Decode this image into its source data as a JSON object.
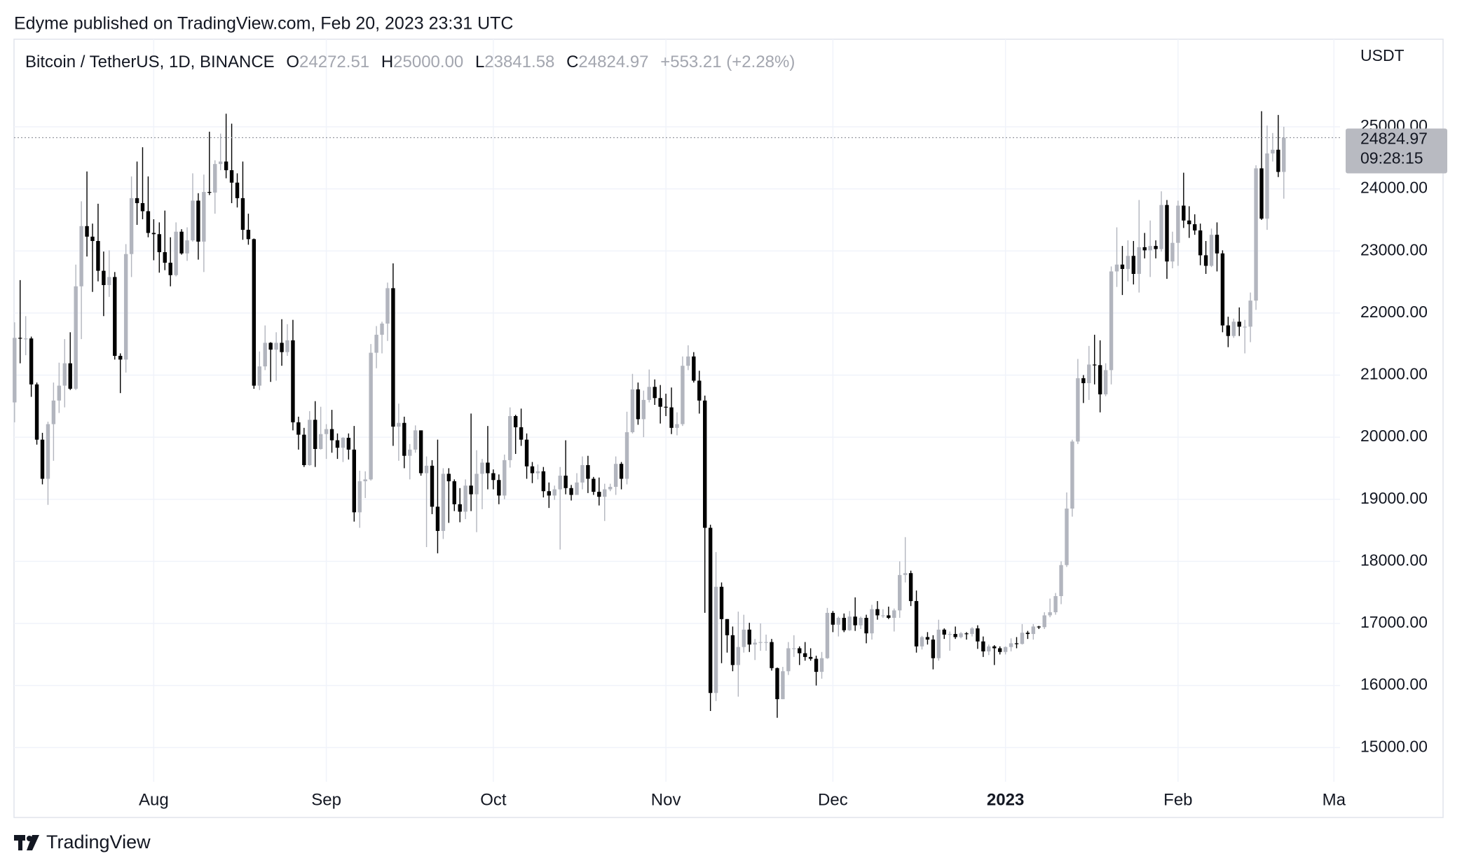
{
  "header": {
    "publisher": "Edyme published on TradingView.com, Feb 20, 2023 23:31 UTC"
  },
  "footer": {
    "brand": "TradingView"
  },
  "chart_data": {
    "type": "candlestick",
    "legend": {
      "symbol": "Bitcoin / TetherUS, 1D, BINANCE",
      "fields": [
        {
          "key": "O",
          "value": "24272.51"
        },
        {
          "key": "H",
          "value": "25000.00"
        },
        {
          "key": "L",
          "value": "23841.58"
        },
        {
          "key": "C",
          "value": "24824.97"
        }
      ],
      "change": "+553.21 (+2.28%)"
    },
    "y_unit": "USDT",
    "countdown": "09:28:15",
    "up_color": "#b2b5be",
    "down_color": "#000000",
    "grid": true,
    "open": [
      20560,
      21600,
      21590,
      21590,
      20850,
      19960,
      19330,
      20210,
      20590,
      20830,
      21190,
      20780,
      22430,
      23400,
      23230,
      23160,
      22680,
      22450,
      22580,
      21310,
      21250,
      22950,
      23850,
      23770,
      23640,
      23290,
      23270,
      22980,
      22810,
      22610,
      23310,
      22960,
      23170,
      23810,
      23150,
      23950,
      23940,
      24400,
      24440,
      24300,
      24100,
      23850,
      23340,
      23190,
      20830,
      21140,
      21520,
      21410,
      21520,
      21370,
      21560,
      20240,
      20040,
      19550,
      20280,
      19810,
      20050,
      20130,
      19950,
      19830,
      19990,
      19800,
      18790,
      19290,
      19320,
      21360,
      21650,
      21830,
      22400,
      20170,
      20230,
      19700,
      19800,
      20110,
      19420,
      19540,
      18880,
      18490,
      19410,
      19290,
      18920,
      18800,
      19220,
      19080,
      19410,
      19590,
      19420,
      19310,
      19060,
      19630,
      20340,
      20160,
      19960,
      19530,
      19420,
      19450,
      19130,
      19060,
      19160,
      19380,
      19180,
      19070,
      19270,
      19550,
      19330,
      19120,
      19040,
      19160,
      19200,
      19570,
      19330,
      20080,
      20770,
      20290,
      20600,
      20810,
      20630,
      20490,
      20480,
      20150,
      20210,
      21150,
      21300,
      20910,
      20590,
      18540,
      15880,
      17590,
      17070,
      16810,
      16330,
      16620,
      16900,
      16660,
      16690,
      16700,
      16700,
      16280,
      15780,
      16230,
      16600,
      16600,
      16520,
      16460,
      16430,
      16220,
      16440,
      17170,
      16980,
      17090,
      16890,
      17110,
      16970,
      17090,
      16840,
      17230,
      17130,
      17130,
      17090,
      17210,
      17780,
      17810,
      17360,
      16630,
      16780,
      16740,
      16440,
      16900,
      16820,
      16830,
      16780,
      16840,
      16830,
      16920,
      16710,
      16550,
      16630,
      16600,
      16540,
      16620,
      16680,
      16670,
      16850,
      16830,
      16950,
      16940,
      17130,
      17180,
      17440,
      17940,
      18850,
      19930,
      20950,
      20870,
      21170,
      21160,
      20690,
      21080,
      22670,
      22780,
      22710,
      22920,
      22630,
      23060,
      23010,
      23080,
      23030,
      23740,
      22830,
      23130,
      23730,
      23490,
      23430,
      23330,
      22930,
      22760,
      23260,
      22960,
      21800,
      21630,
      21860,
      21780,
      21780,
      22200,
      24330,
      23520,
      24570,
      24630,
      24272.51
    ],
    "high": [
      21850,
      22530,
      21950,
      21620,
      20880,
      20070,
      20250,
      20880,
      21200,
      21580,
      21690,
      22780,
      23800,
      24280,
      23440,
      23760,
      22990,
      23010,
      22660,
      21350,
      23110,
      24200,
      24440,
      24670,
      24200,
      23510,
      23460,
      23650,
      23220,
      23460,
      23350,
      23380,
      24250,
      23930,
      24230,
      24920,
      24460,
      24890,
      25210,
      25050,
      24250,
      24440,
      23600,
      23200,
      21380,
      21800,
      21530,
      21690,
      21900,
      21820,
      21890,
      20330,
      20150,
      20420,
      20580,
      20490,
      20210,
      20440,
      20060,
      20000,
      20060,
      20180,
      19460,
      19450,
      21500,
      21790,
      21860,
      22490,
      22800,
      20540,
      20330,
      19890,
      20190,
      20100,
      19690,
      19630,
      19960,
      19500,
      19500,
      19320,
      19180,
      19320,
      20380,
      19790,
      19650,
      20180,
      19480,
      19400,
      19720,
      20480,
      20360,
      20460,
      20060,
      19600,
      19560,
      19520,
      19270,
      19220,
      19520,
      19950,
      19230,
      19420,
      19690,
      19700,
      19360,
      19350,
      19250,
      19250,
      19690,
      19600,
      20410,
      21020,
      20880,
      20750,
      21090,
      20930,
      20840,
      20700,
      20800,
      20400,
      21300,
      21480,
      21370,
      21070,
      20670,
      18590,
      18150,
      17660,
      17070,
      16950,
      17190,
      17140,
      17010,
      16750,
      17000,
      16820,
      16750,
      16290,
      16300,
      16700,
      16810,
      16630,
      16700,
      16600,
      16480,
      16540,
      17250,
      17200,
      17110,
      17160,
      17200,
      17420,
      17110,
      17140,
      17300,
      17360,
      17230,
      17270,
      17240,
      18000,
      18390,
      17850,
      17530,
      16800,
      16860,
      16810,
      17060,
      16920,
      16870,
      16950,
      16860,
      16860,
      16940,
      16970,
      16790,
      16660,
      16650,
      16630,
      16630,
      16760,
      16780,
      16990,
      16880,
      16990,
      16960,
      17180,
      17400,
      17490,
      18000,
      19110,
      19960,
      21260,
      21000,
      21470,
      21650,
      21560,
      21190,
      22750,
      23380,
      23080,
      23170,
      23160,
      23820,
      23290,
      23490,
      23170,
      23960,
      23820,
      23310,
      23810,
      24260,
      23720,
      23590,
      23440,
      23160,
      23360,
      23460,
      23010,
      21940,
      21910,
      22090,
      21890,
      22330,
      24380,
      25250,
      25020,
      24900,
      25190,
      25000
    ],
    "low": [
      20240,
      21190,
      21320,
      20650,
      19880,
      19240,
      18910,
      19620,
      20390,
      20480,
      20760,
      20760,
      21580,
      22910,
      22340,
      22510,
      21950,
      22260,
      21250,
      20710,
      21040,
      22580,
      23420,
      23510,
      23220,
      22850,
      22650,
      22690,
      22430,
      22590,
      22940,
      22840,
      23150,
      22860,
      22660,
      23900,
      23600,
      24300,
      24170,
      23770,
      23700,
      23180,
      23100,
      20780,
      20760,
      21080,
      20890,
      20910,
      21150,
      21310,
      20110,
      19800,
      19520,
      19540,
      19520,
      19800,
      19650,
      19750,
      19650,
      19600,
      19640,
      18640,
      18540,
      19020,
      19300,
      21110,
      21350,
      21550,
      19860,
      19620,
      19500,
      19320,
      19750,
      19380,
      18230,
      18760,
      18130,
      18360,
      18620,
      18810,
      18630,
      18680,
      18810,
      18470,
      18840,
      19160,
      19160,
      18920,
      19000,
      19510,
      19730,
      19860,
      19330,
      19260,
      19320,
      19030,
      18860,
      18990,
      18190,
      19080,
      18980,
      19070,
      19160,
      19100,
      19070,
      18900,
      18650,
      19130,
      19070,
      19160,
      19240,
      20060,
      20200,
      20000,
      20560,
      20520,
      20220,
      20340,
      20050,
      20030,
      20180,
      21080,
      20880,
      20380,
      17170,
      15590,
      15750,
      16360,
      16530,
      16230,
      15820,
      16530,
      16540,
      16410,
      16560,
      16560,
      16240,
      15480,
      15780,
      16170,
      16460,
      16330,
      16400,
      16400,
      16000,
      16110,
      16430,
      16860,
      16790,
      16860,
      16880,
      16880,
      16910,
      16680,
      16740,
      17060,
      17090,
      17070,
      16870,
      17090,
      17660,
      17280,
      16530,
      16580,
      16660,
      16260,
      16400,
      16750,
      16560,
      16750,
      16760,
      16740,
      16790,
      16590,
      16460,
      16490,
      16330,
      16500,
      16500,
      16550,
      16600,
      16660,
      16750,
      16740,
      16910,
      16910,
      17100,
      17140,
      17310,
      17910,
      18720,
      19890,
      20550,
      20600,
      20850,
      20400,
      20660,
      20850,
      22420,
      22290,
      22510,
      22460,
      22330,
      22880,
      22580,
      22880,
      22990,
      22550,
      22720,
      22760,
      23370,
      23210,
      23260,
      22770,
      22630,
      22740,
      22670,
      21690,
      21450,
      21600,
      21630,
      21350,
      21530,
      22050,
      23500,
      23340,
      24440,
      24190,
      23841.58
    ],
    "close": [
      21600,
      21590,
      21590,
      20850,
      19960,
      19330,
      20210,
      20590,
      20830,
      21190,
      20780,
      22430,
      23400,
      23230,
      23160,
      22680,
      22450,
      22580,
      21310,
      21250,
      22950,
      23850,
      23770,
      23640,
      23290,
      23270,
      22980,
      22810,
      22610,
      23310,
      22960,
      23170,
      23810,
      23150,
      23950,
      23940,
      24400,
      24440,
      24300,
      24100,
      23850,
      23340,
      23190,
      20830,
      21140,
      21520,
      21410,
      21520,
      21370,
      21560,
      20240,
      20040,
      19550,
      20280,
      19810,
      20050,
      20130,
      19950,
      19830,
      19990,
      19800,
      18790,
      19290,
      19320,
      21360,
      21650,
      21830,
      22400,
      20170,
      20230,
      19700,
      19800,
      20110,
      19420,
      19540,
      18880,
      18490,
      19410,
      19290,
      18920,
      18800,
      19220,
      19080,
      19410,
      19590,
      19420,
      19310,
      19060,
      19630,
      20340,
      20160,
      19960,
      19530,
      19420,
      19450,
      19130,
      19060,
      19160,
      19380,
      19180,
      19070,
      19270,
      19550,
      19330,
      19120,
      19040,
      19160,
      19200,
      19570,
      19330,
      20080,
      20770,
      20290,
      20600,
      20810,
      20630,
      20490,
      20480,
      20150,
      20210,
      21150,
      21300,
      20910,
      20590,
      18540,
      15880,
      17590,
      17070,
      16810,
      16330,
      16620,
      16900,
      16660,
      16690,
      16700,
      16700,
      16280,
      15780,
      16230,
      16600,
      16600,
      16520,
      16460,
      16430,
      16220,
      16440,
      17170,
      16980,
      17090,
      16890,
      17110,
      16970,
      17090,
      16840,
      17230,
      17130,
      17130,
      17090,
      17210,
      17780,
      17810,
      17360,
      16630,
      16780,
      16740,
      16440,
      16900,
      16820,
      16830,
      16780,
      16840,
      16830,
      16920,
      16710,
      16550,
      16630,
      16600,
      16540,
      16620,
      16680,
      16670,
      16850,
      16830,
      16950,
      16940,
      17130,
      17180,
      17440,
      17940,
      18850,
      19930,
      20950,
      20870,
      21170,
      21160,
      20690,
      21080,
      22670,
      22780,
      22710,
      22920,
      22630,
      23060,
      23010,
      23080,
      23030,
      23740,
      22830,
      23130,
      23730,
      23490,
      23430,
      23330,
      22930,
      22760,
      23260,
      22960,
      21800,
      21630,
      21860,
      21780,
      21780,
      22200,
      24330,
      23520,
      24570,
      24630,
      24272.51,
      24824.97
    ],
    "xlim": [
      -0.1,
      238.1
    ],
    "xticks": [
      {
        "value": 25,
        "label": "Aug"
      },
      {
        "value": 56,
        "label": "Sep"
      },
      {
        "value": 86,
        "label": "Oct"
      },
      {
        "value": 117,
        "label": "Nov"
      },
      {
        "value": 147,
        "label": "Dec"
      },
      {
        "value": 178,
        "label": "2023"
      },
      {
        "value": 209,
        "label": "Feb"
      },
      {
        "value": 237,
        "label": "Ma"
      }
    ],
    "ylim": [
      14450,
      26410
    ],
    "yticks": [
      {
        "value": 15000,
        "label": "15000.00"
      },
      {
        "value": 16000,
        "label": "16000.00"
      },
      {
        "value": 17000,
        "label": "17000.00"
      },
      {
        "value": 18000,
        "label": "18000.00"
      },
      {
        "value": 19000,
        "label": "19000.00"
      },
      {
        "value": 20000,
        "label": "20000.00"
      },
      {
        "value": 21000,
        "label": "21000.00"
      },
      {
        "value": 22000,
        "label": "22000.00"
      },
      {
        "value": 23000,
        "label": "23000.00"
      },
      {
        "value": 24000,
        "label": "24000.00"
      },
      {
        "value": 25000,
        "label": "25000.00"
      }
    ]
  }
}
